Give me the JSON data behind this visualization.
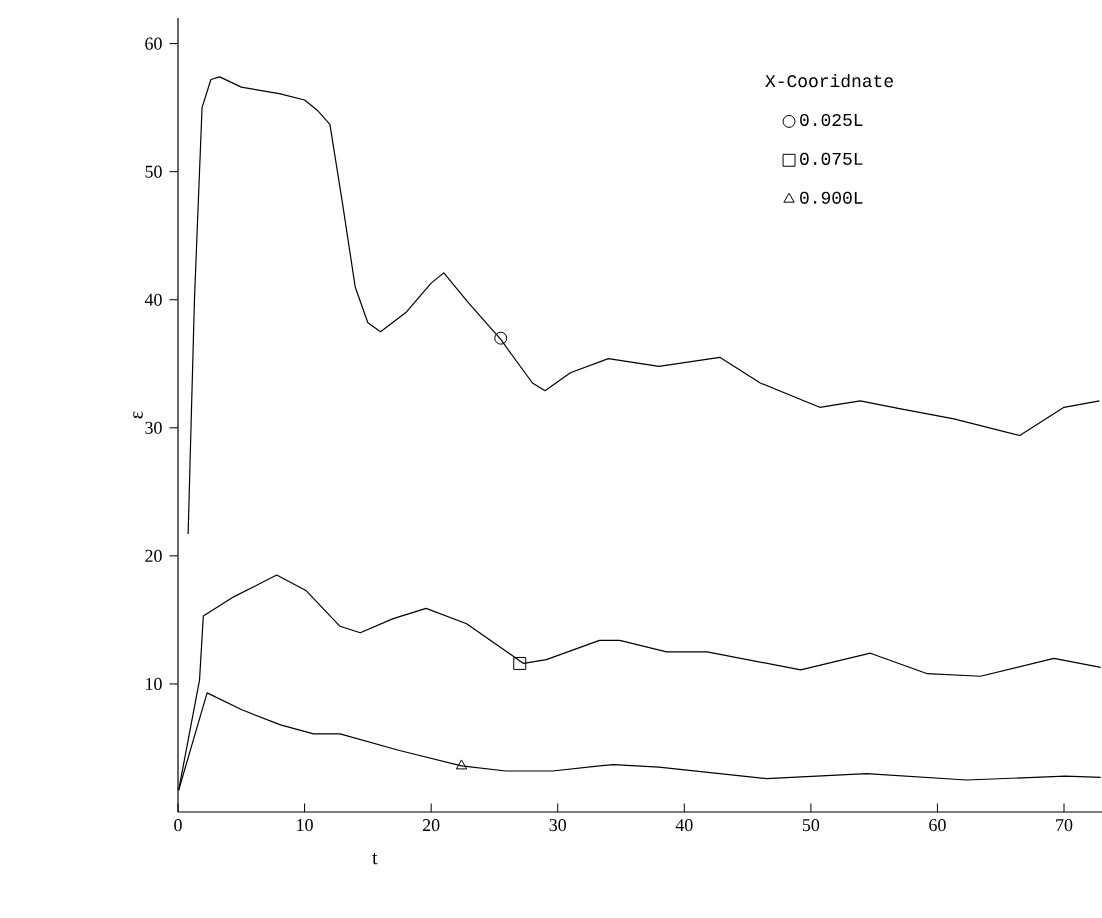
{
  "chart_data": {
    "type": "line",
    "xlabel": "t",
    "ylabel": "ε",
    "legend_title": "X-Cooridnate",
    "legend": "top right",
    "xlim": [
      0,
      73
    ],
    "ylim": [
      0,
      62
    ],
    "xticks": [
      0,
      10,
      20,
      30,
      40,
      50,
      60,
      70
    ],
    "yticks": [
      10,
      20,
      30,
      40,
      50,
      60
    ],
    "series": [
      {
        "color": "#000000",
        "x": [
          0.8,
          1.3,
          1.9,
          2.6,
          3.3,
          5,
          8,
          10,
          11,
          12,
          13,
          14,
          15,
          16,
          18,
          20,
          21,
          23,
          25.5,
          28,
          29,
          31,
          34,
          38,
          42.8,
          46,
          50.7,
          53.9,
          57,
          61.3,
          66.5,
          70,
          72.8
        ],
        "values": [
          21.7,
          40,
          55,
          57.2,
          57.4,
          56.6,
          56.1,
          55.6,
          54.8,
          53.7,
          47.5,
          41,
          38.2,
          37.5,
          39,
          41.3,
          42.1,
          39.7,
          36.9,
          33.5,
          32.9,
          34.3,
          35.4,
          34.8,
          35.5,
          33.5,
          31.6,
          32.1,
          31.5,
          30.7,
          29.4,
          31.6,
          32.1
        ]
      },
      {
        "color": "#000000",
        "x": [
          0.05,
          1.7,
          2,
          4.4,
          7.8,
          10.1,
          12.8,
          14.4,
          17,
          19.6,
          22.8,
          27.3,
          29.1,
          33.3,
          34.9,
          38.6,
          41.8,
          49.2,
          54.7,
          59.2,
          63.4,
          69.2,
          72.9
        ],
        "values": [
          1.7,
          10.3,
          15.3,
          16.8,
          18.5,
          17.3,
          14.5,
          14,
          15.1,
          15.9,
          14.7,
          11.6,
          11.9,
          13.4,
          13.4,
          12.5,
          12.5,
          11.1,
          12.4,
          10.8,
          10.6,
          12,
          11.3
        ]
      },
      {
        "color": "#000000",
        "x": [
          0.05,
          2.3,
          5,
          8.1,
          10.7,
          12.8,
          17.5,
          22.4,
          25.9,
          29.6,
          33.3,
          34.4,
          38,
          46.5,
          54.4,
          62.3,
          70.1,
          72.9
        ],
        "values": [
          1.7,
          9.3,
          8,
          6.8,
          6.1,
          6.1,
          4.8,
          3.6,
          3.2,
          3.2,
          3.6,
          3.7,
          3.5,
          2.6,
          3,
          2.5,
          2.8,
          2.7
        ]
      },
      {
        "type": "scatter",
        "name": "0.025L",
        "marker": "circle",
        "color": "#000000",
        "x": [
          25.5
        ],
        "values": [
          37
        ]
      },
      {
        "type": "scatter",
        "name": "0.075L",
        "marker": "square",
        "color": "#000000",
        "x": [
          27
        ],
        "values": [
          11.6
        ]
      },
      {
        "type": "scatter",
        "name": "0.900L",
        "marker": "triangle",
        "color": "#000000",
        "x": [
          22.4
        ],
        "values": [
          3.6
        ]
      }
    ]
  }
}
